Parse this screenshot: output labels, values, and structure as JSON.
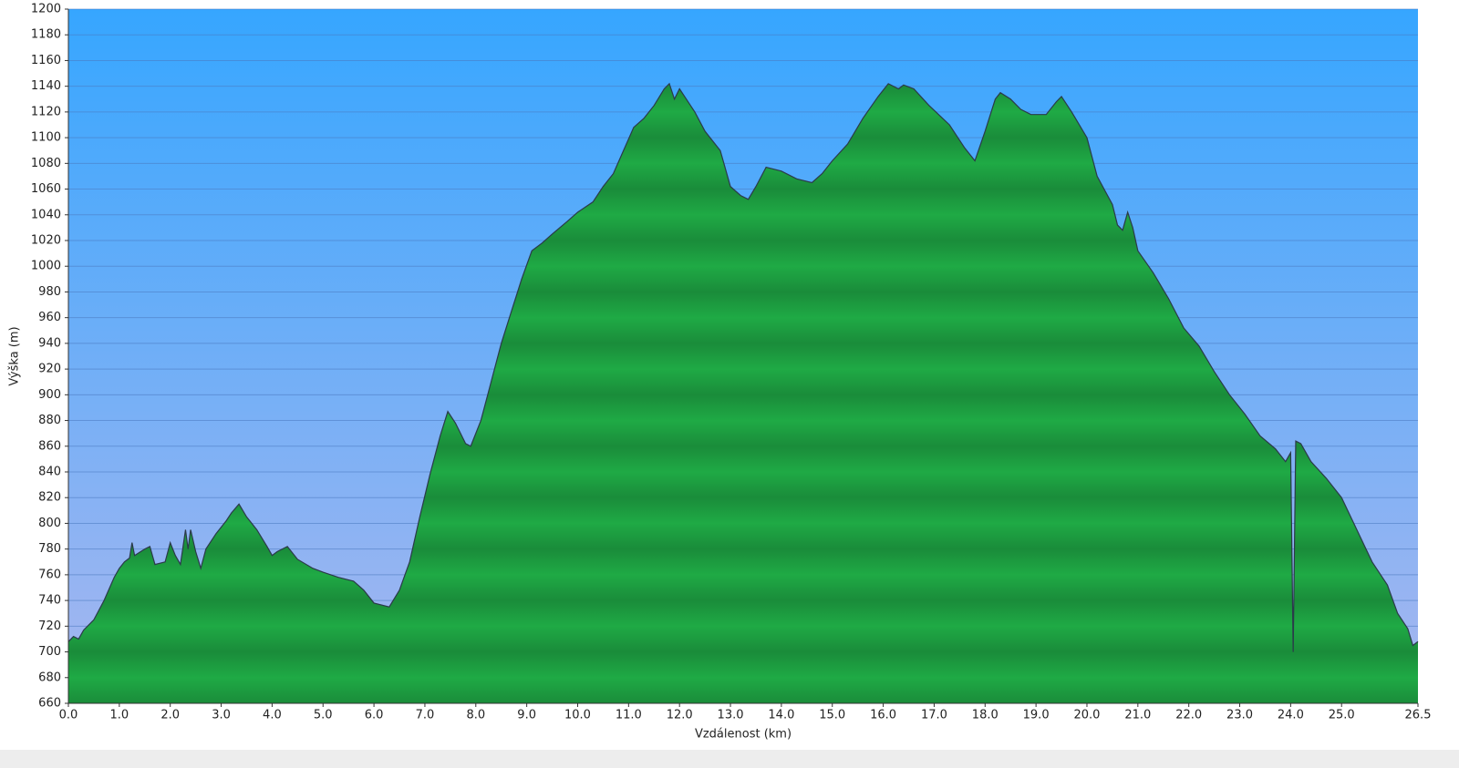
{
  "chart_data": {
    "type": "area",
    "y_label": "Výška (m)",
    "x_label": "Vzdálenost (km)",
    "color": "#1faa45",
    "line_color": "#2b3a4a",
    "grid": true,
    "x": [
      0.0,
      0.1,
      0.2,
      0.3,
      0.5,
      0.7,
      0.9,
      1.0,
      1.1,
      1.2,
      1.25,
      1.3,
      1.5,
      1.6,
      1.7,
      1.9,
      2.0,
      2.1,
      2.2,
      2.3,
      2.35,
      2.4,
      2.5,
      2.6,
      2.7,
      2.9,
      3.1,
      3.2,
      3.35,
      3.5,
      3.7,
      3.9,
      4.0,
      4.1,
      4.3,
      4.5,
      4.8,
      5.0,
      5.3,
      5.6,
      5.8,
      6.0,
      6.3,
      6.5,
      6.7,
      6.9,
      7.1,
      7.3,
      7.45,
      7.6,
      7.7,
      7.8,
      7.9,
      8.1,
      8.3,
      8.5,
      8.7,
      8.9,
      9.1,
      9.3,
      9.5,
      9.8,
      10.0,
      10.3,
      10.5,
      10.7,
      10.9,
      11.1,
      11.3,
      11.5,
      11.7,
      11.8,
      11.9,
      12.0,
      12.1,
      12.3,
      12.5,
      12.8,
      13.0,
      13.2,
      13.35,
      13.5,
      13.7,
      14.0,
      14.3,
      14.6,
      14.8,
      15.0,
      15.3,
      15.6,
      15.9,
      16.1,
      16.3,
      16.4,
      16.6,
      16.9,
      17.3,
      17.6,
      17.8,
      18.0,
      18.2,
      18.3,
      18.5,
      18.7,
      18.9,
      19.2,
      19.4,
      19.5,
      19.7,
      20.0,
      20.2,
      20.5,
      20.6,
      20.7,
      20.8,
      20.9,
      21.0,
      21.3,
      21.6,
      21.9,
      22.2,
      22.5,
      22.8,
      23.1,
      23.4,
      23.7,
      23.9,
      24.0,
      24.05,
      24.1,
      24.2,
      24.4,
      24.7,
      25.0,
      25.3,
      25.6,
      25.9,
      26.1,
      26.3,
      26.4,
      26.5
    ],
    "values": [
      708,
      712,
      710,
      717,
      725,
      740,
      758,
      765,
      770,
      773,
      785,
      775,
      780,
      782,
      768,
      770,
      785,
      775,
      768,
      795,
      780,
      795,
      778,
      765,
      780,
      792,
      802,
      808,
      815,
      805,
      795,
      782,
      775,
      778,
      782,
      772,
      765,
      762,
      758,
      755,
      748,
      738,
      735,
      748,
      770,
      805,
      838,
      868,
      887,
      878,
      870,
      862,
      860,
      880,
      910,
      940,
      965,
      990,
      1012,
      1018,
      1025,
      1035,
      1042,
      1050,
      1062,
      1072,
      1090,
      1108,
      1115,
      1125,
      1138,
      1142,
      1130,
      1138,
      1132,
      1120,
      1105,
      1090,
      1062,
      1055,
      1052,
      1062,
      1077,
      1074,
      1068,
      1065,
      1072,
      1082,
      1095,
      1115,
      1132,
      1142,
      1138,
      1141,
      1138,
      1125,
      1110,
      1092,
      1082,
      1105,
      1130,
      1135,
      1130,
      1122,
      1118,
      1118,
      1128,
      1132,
      1120,
      1100,
      1070,
      1048,
      1032,
      1028,
      1042,
      1030,
      1012,
      995,
      975,
      952,
      938,
      918,
      900,
      885,
      868,
      858,
      848,
      855,
      700,
      864,
      862,
      848,
      835,
      820,
      795,
      770,
      752,
      730,
      718,
      705,
      708
    ],
    "xlim": [
      0,
      26.5
    ],
    "xticks": [
      {
        "value": 0,
        "label": "0.0"
      },
      {
        "value": 1,
        "label": "1.0"
      },
      {
        "value": 2,
        "label": "2.0"
      },
      {
        "value": 3,
        "label": "3.0"
      },
      {
        "value": 4,
        "label": "4.0"
      },
      {
        "value": 5,
        "label": "5.0"
      },
      {
        "value": 6,
        "label": "6.0"
      },
      {
        "value": 7,
        "label": "7.0"
      },
      {
        "value": 8,
        "label": "8.0"
      },
      {
        "value": 9,
        "label": "9.0"
      },
      {
        "value": 10,
        "label": "10.0"
      },
      {
        "value": 11,
        "label": "11.0"
      },
      {
        "value": 12,
        "label": "12.0"
      },
      {
        "value": 13,
        "label": "13.0"
      },
      {
        "value": 14,
        "label": "14.0"
      },
      {
        "value": 15,
        "label": "15.0"
      },
      {
        "value": 16,
        "label": "16.0"
      },
      {
        "value": 17,
        "label": "17.0"
      },
      {
        "value": 18,
        "label": "18.0"
      },
      {
        "value": 19,
        "label": "19.0"
      },
      {
        "value": 20,
        "label": "20.0"
      },
      {
        "value": 21,
        "label": "21.0"
      },
      {
        "value": 22,
        "label": "22.0"
      },
      {
        "value": 23,
        "label": "23.0"
      },
      {
        "value": 24,
        "label": "24.0"
      },
      {
        "value": 25,
        "label": "25.0"
      },
      26.5
    ],
    "ylim": [
      660,
      1200
    ],
    "yticks": [
      660,
      680,
      700,
      720,
      740,
      760,
      780,
      800,
      820,
      840,
      860,
      880,
      900,
      920,
      940,
      960,
      980,
      1000,
      1020,
      1040,
      1060,
      1080,
      1100,
      1120,
      1140,
      1160,
      1180,
      1200
    ]
  }
}
